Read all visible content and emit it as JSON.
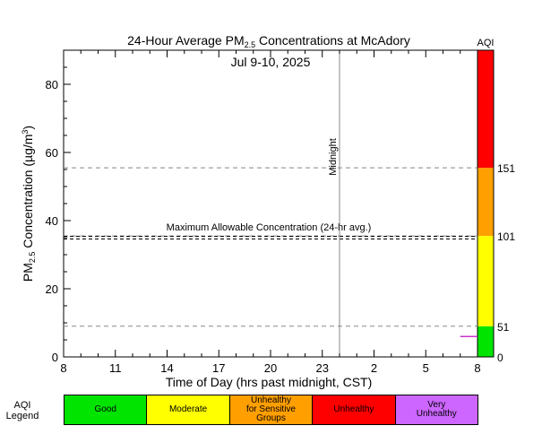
{
  "chart_data": {
    "type": "line",
    "title_main": "24-Hour Average PM",
    "title_sub": "2.5",
    "title_rest": " Concentrations at McAdory",
    "date_label": "Jul 9-10, 2025",
    "xlabel": "Time of Day (hrs past midnight, CST)",
    "ylabel_main": "PM",
    "ylabel_sub": "2.5",
    "ylabel_rest": " Concentration (µg/m",
    "ylabel_sup": "3",
    "ylabel_end": ")",
    "x_hours_past_start": [
      0,
      3,
      6,
      9,
      12,
      15,
      18,
      21,
      24
    ],
    "x_tick_labels": [
      "8",
      "11",
      "14",
      "17",
      "20",
      "23",
      "2",
      "5",
      "8"
    ],
    "xlim": [
      0,
      24
    ],
    "ylim": [
      0,
      90
    ],
    "y_ticks": [
      0,
      20,
      40,
      60,
      80
    ],
    "midnight_label": "Midnight",
    "midnight_x": 16,
    "max_allowable_label": "Maximum Allowable Concentration (24-hr avg.)",
    "max_allowable_value": 35,
    "aqi_thresholds": [
      9,
      35.5,
      55.5
    ],
    "series": [
      {
        "color": "#cc33cc",
        "x": [
          23.0,
          24.0
        ],
        "y": [
          6,
          6
        ]
      }
    ],
    "aqi_header": "AQI",
    "aqi_bands": [
      {
        "from": 0,
        "to": 9,
        "color": "#00e400"
      },
      {
        "from": 9,
        "to": 35.5,
        "color": "#ffff00"
      },
      {
        "from": 35.5,
        "to": 55.5,
        "color": "#ff9f00"
      },
      {
        "from": 55.5,
        "to": 90,
        "color": "#ff0000"
      }
    ],
    "aqi_labels": [
      {
        "value": 0,
        "label": "0"
      },
      {
        "value": 9,
        "label": "51"
      },
      {
        "value": 35.5,
        "label": "101"
      },
      {
        "value": 55.5,
        "label": "151"
      }
    ]
  },
  "legend": {
    "title": "AQI\nLegend",
    "items": [
      {
        "label": "Good",
        "color": "#00e400"
      },
      {
        "label": "Moderate",
        "color": "#ffff00"
      },
      {
        "label": "Unhealthy\nfor Sensitive\nGroups",
        "color": "#ff9f00"
      },
      {
        "label": "Unhealthy",
        "color": "#ff0000"
      },
      {
        "label": "Very\nUnhealthy",
        "color": "#cc66ff"
      }
    ]
  }
}
